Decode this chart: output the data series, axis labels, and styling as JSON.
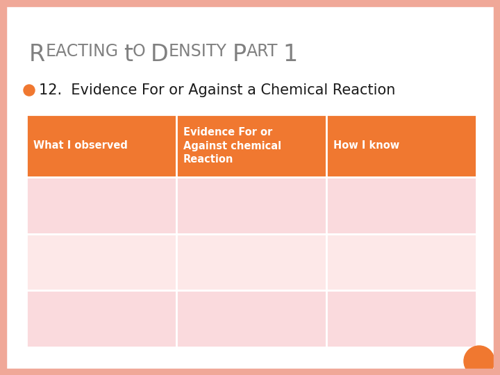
{
  "title_parts": [
    {
      "text": "R",
      "large": true
    },
    {
      "text": "EACTING TO ",
      "large": false
    },
    {
      "text": "D",
      "large": true
    },
    {
      "text": "ENSITY ",
      "large": false
    },
    {
      "text": "P",
      "large": true
    },
    {
      "text": "ART 1",
      "large": false
    }
  ],
  "subtitle": "12.  Evidence For or Against a Chemical Reaction",
  "bullet_color": "#F07830",
  "header_bg": "#F07830",
  "header_text_color": "#FFFFFF",
  "row_bg_row0": "#FADADD",
  "row_bg_row1": "#FDE8E8",
  "row_bg_row2": "#FADADD",
  "border_color": "#FFFFFF",
  "slide_bg": "#FFFFFF",
  "slide_border_color": "#F0A898",
  "title_color": "#808080",
  "subtitle_color": "#1a1a1a",
  "col_headers": [
    "What I observed",
    "Evidence For or\nAgainst chemical\nReaction",
    "How I know"
  ],
  "num_data_rows": 3,
  "corner_circle_color": "#F07830"
}
